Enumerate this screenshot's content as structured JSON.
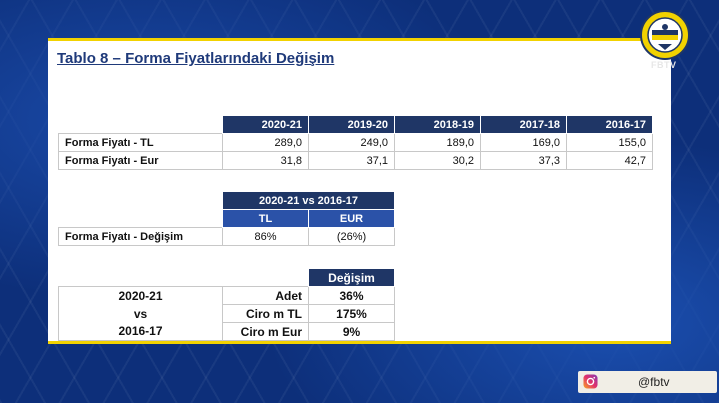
{
  "slide": {
    "title": "Tablo 8 – Forma Fiyatlarındaki Değişim"
  },
  "table1": {
    "columns": [
      "2020-21",
      "2019-20",
      "2018-19",
      "2017-18",
      "2016-17"
    ],
    "rows": [
      {
        "label": "Forma Fiyatı - TL",
        "values": [
          "289,0",
          "249,0",
          "189,0",
          "169,0",
          "155,0"
        ]
      },
      {
        "label": "Forma Fiyatı - Eur",
        "values": [
          "31,8",
          "37,1",
          "30,2",
          "37,3",
          "42,7"
        ]
      }
    ]
  },
  "table2": {
    "header": "2020-21 vs 2016-17",
    "subheaders": [
      "TL",
      "EUR"
    ],
    "row": {
      "label": "Forma Fiyatı - Değişim",
      "values": [
        "86%",
        "(26%)"
      ]
    }
  },
  "table3": {
    "header": "Değişim",
    "period_lines": [
      "2020-21",
      "vs",
      "2016-17"
    ],
    "rows": [
      {
        "metric": "Adet",
        "value": "36%"
      },
      {
        "metric": "Ciro m TL",
        "value": "175%"
      },
      {
        "metric": "Ciro m Eur",
        "value": "9%"
      }
    ]
  },
  "overlay": {
    "watermark": "FBTV",
    "social_handle": "@fbtv",
    "logo_icon": "fenerbahce-crest-icon",
    "social_icon": "instagram-icon"
  },
  "colors": {
    "header_navy": "#1f3666",
    "subheader_blue": "#2b52a8",
    "accent_yellow": "#f2d200",
    "background_blue": "#0d2f7a"
  }
}
